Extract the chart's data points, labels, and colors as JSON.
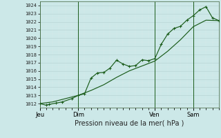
{
  "xlabel": "Pression niveau de la mer( hPa )",
  "ylim": [
    1011.5,
    1024.5
  ],
  "yticks": [
    1012,
    1013,
    1014,
    1015,
    1016,
    1017,
    1018,
    1019,
    1020,
    1021,
    1022,
    1023,
    1024
  ],
  "background_color": "#cce8e8",
  "grid_major_color": "#b8d4d4",
  "grid_minor_color": "#d8ecec",
  "line_color": "#1a5c1a",
  "x_tick_labels": [
    "Jeu",
    "Dim",
    "Ven",
    "Sam"
  ],
  "x_tick_positions": [
    0,
    12,
    36,
    48
  ],
  "vline_positions": [
    0,
    12,
    36,
    48
  ],
  "series1_x": [
    0,
    2,
    3,
    5,
    7,
    10,
    12,
    14,
    16,
    18,
    20,
    22,
    24,
    26,
    28,
    30,
    32,
    34,
    36,
    38,
    40,
    42,
    44,
    46,
    48,
    50,
    52,
    54,
    56
  ],
  "series1_y": [
    1012.0,
    1011.8,
    1011.9,
    1012.05,
    1012.2,
    1012.6,
    1013.0,
    1013.2,
    1015.1,
    1015.75,
    1015.8,
    1016.35,
    1017.3,
    1016.85,
    1016.55,
    1016.65,
    1017.35,
    1017.25,
    1017.5,
    1019.25,
    1020.5,
    1021.2,
    1021.45,
    1022.2,
    1022.75,
    1023.45,
    1023.85,
    1022.5,
    1022.15
  ],
  "series2_x": [
    0,
    4,
    8,
    12,
    16,
    20,
    24,
    28,
    32,
    36,
    40,
    44,
    48,
    52,
    56
  ],
  "series2_y": [
    1012.0,
    1012.2,
    1012.6,
    1013.0,
    1013.6,
    1014.3,
    1015.2,
    1016.0,
    1016.6,
    1017.2,
    1018.4,
    1019.8,
    1021.4,
    1022.2,
    1022.15
  ],
  "xlim": [
    0,
    56
  ],
  "figsize": [
    3.2,
    2.0
  ],
  "dpi": 100
}
